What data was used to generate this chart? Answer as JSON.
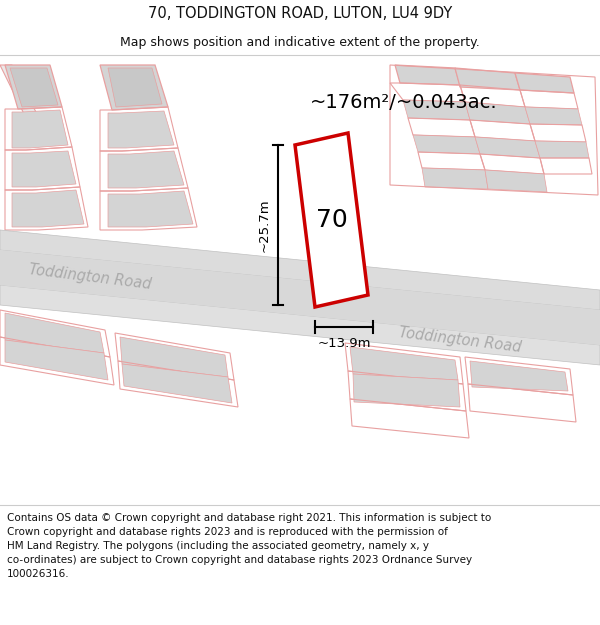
{
  "title": "70, TODDINGTON ROAD, LUTON, LU4 9DY",
  "subtitle": "Map shows position and indicative extent of the property.",
  "area_label": "~176m²/~0.043ac.",
  "property_number": "70",
  "dim_width": "~13.9m",
  "dim_height": "~25.7m",
  "road_label_left": "Toddington Road",
  "road_label_right": "Toddington Road",
  "map_bg": "#f2f0ee",
  "road_fill": "#d8d8d8",
  "road_edge": "#c0c0c0",
  "building_fill": "#d4d4d4",
  "parcel_edge": "#e8a0a0",
  "highlight_edge": "#cc0000",
  "highlight_fill": "#ffffff",
  "dim_color": "#111111",
  "text_color": "#111111",
  "road_text_color": "#aaaaaa",
  "footnote_line1": "Contains OS data © Crown copyright and database right 2021. This information is subject to",
  "footnote_line2": "Crown copyright and database rights 2023 and is reproduced with the permission of",
  "footnote_line3": "HM Land Registry. The polygons (including the associated geometry, namely x, y",
  "footnote_line4": "co-ordinates) are subject to Crown copyright and database rights 2023 Ordnance Survey",
  "footnote_line5": "100026316.",
  "title_fontsize": 10.5,
  "subtitle_fontsize": 9.0,
  "area_fontsize": 14,
  "prop_num_fontsize": 18,
  "road_fontsize": 10.5,
  "dim_fontsize": 9.5,
  "footnote_fontsize": 7.5
}
